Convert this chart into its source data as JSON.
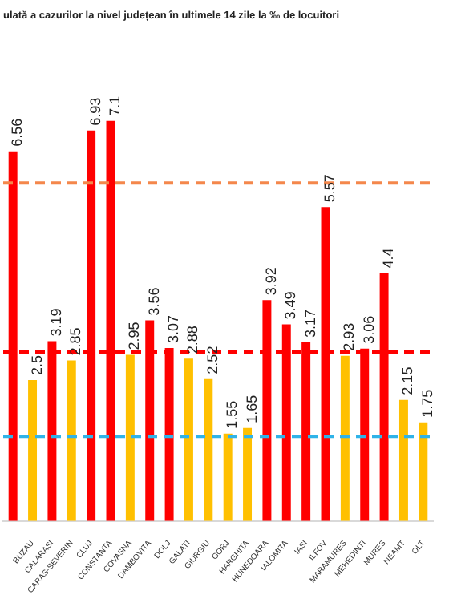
{
  "chart_data": {
    "type": "bar",
    "title": "ulată a cazurilor la nivel județean în ultimele 14 zile la ‰ de locuitori",
    "categories": [
      null,
      "BUZAU",
      "CALARASI",
      "CARAS-SEVERIN",
      "CLUJ",
      "CONSTANTA",
      "COVASNA",
      "DAMBOVITA",
      "DOLJ",
      "GALATI",
      "GIURGIU",
      "GORJ",
      "HARGHITA",
      "HUNEDOARA",
      "IALOMITA",
      "IASI",
      "ILFOV",
      "MARAMURES",
      "MEHEDINTI",
      "MURES",
      "NEAMT",
      "OLT"
    ],
    "values": [
      6.56,
      2.5,
      3.19,
      2.85,
      6.93,
      7.1,
      2.95,
      3.56,
      3.07,
      2.88,
      2.52,
      1.55,
      1.65,
      3.92,
      3.49,
      3.17,
      5.57,
      2.93,
      3.06,
      4.4,
      2.15,
      1.75
    ],
    "colors": [
      "#ff0000",
      "#ffc000",
      "#ff0000",
      "#ffc000",
      "#ff0000",
      "#ff0000",
      "#ffc000",
      "#ff0000",
      "#ff0000",
      "#ffc000",
      "#ffc000",
      "#ffc000",
      "#ffc000",
      "#ff0000",
      "#ff0000",
      "#ff0000",
      "#ff0000",
      "#ffc000",
      "#ff0000",
      "#ff0000",
      "#ffc000",
      "#ffc000"
    ],
    "data_labels": true,
    "ref_lines": [
      {
        "axis": "y",
        "value": 6,
        "color": "#f4874b",
        "line_style": "dashed"
      },
      {
        "axis": "y",
        "value": 3,
        "color": "#ff0000",
        "line_style": "dashed"
      },
      {
        "axis": "y",
        "value": 1.5,
        "color": "#2fb3e8",
        "line_style": "dashed"
      }
    ],
    "grid": false,
    "legend": false
  }
}
